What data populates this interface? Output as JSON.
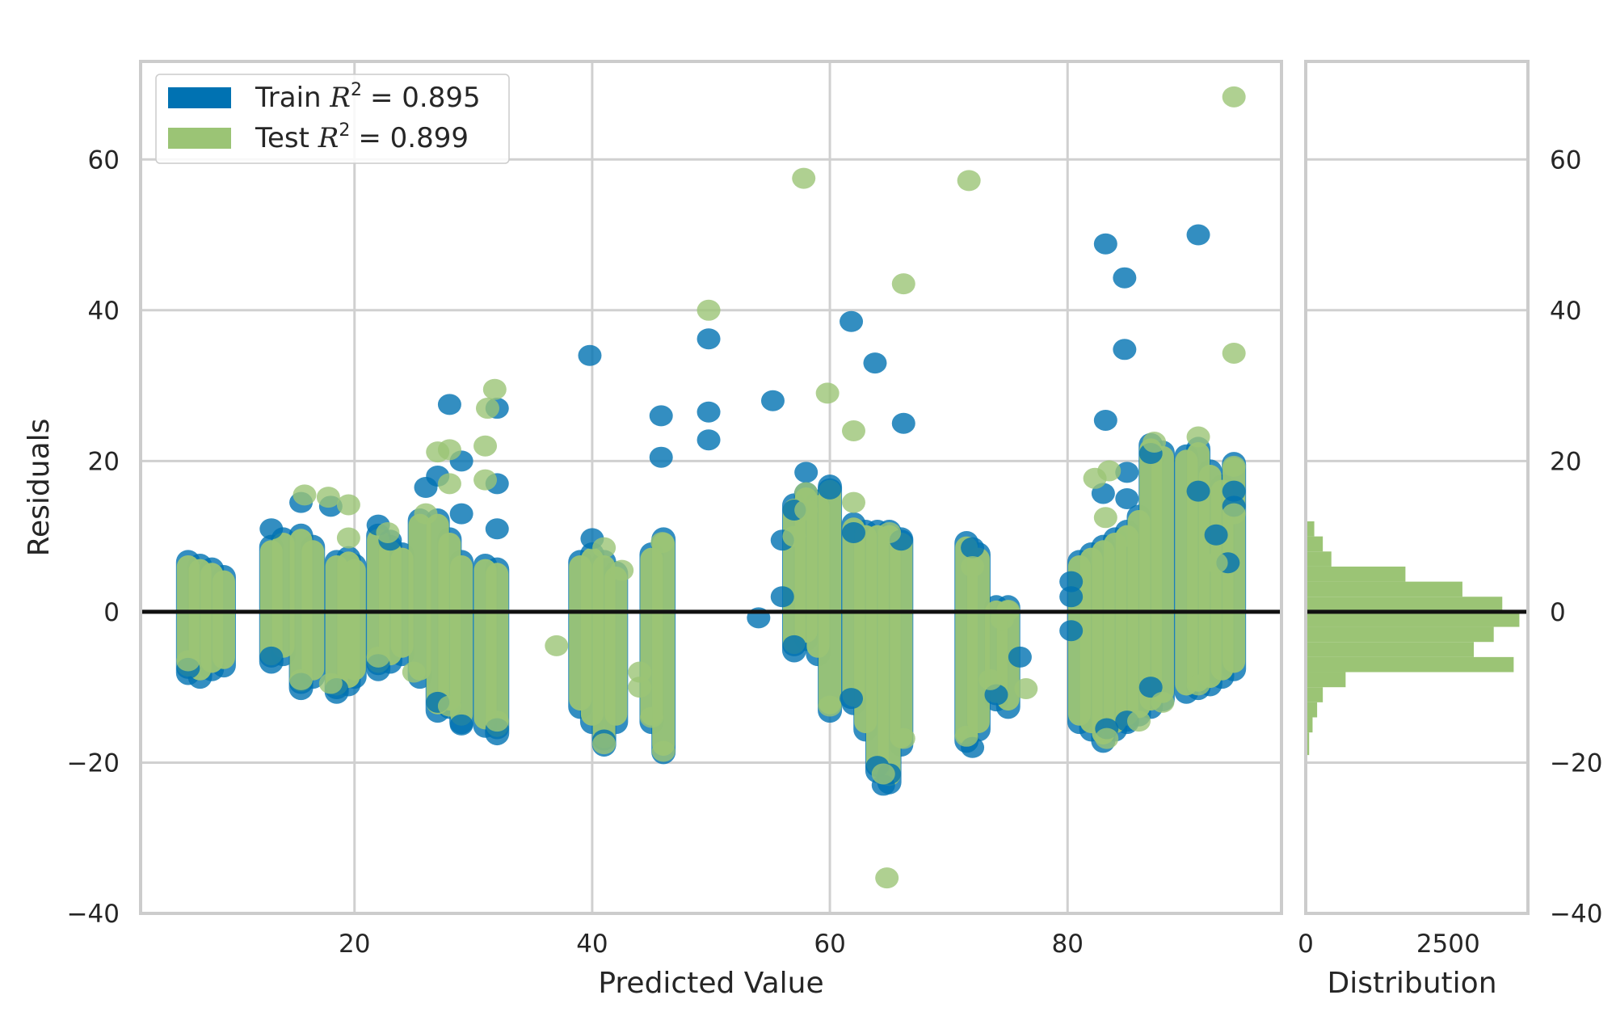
{
  "chart_data": {
    "type": "scatter",
    "title": "",
    "xlabel": "Predicted Value",
    "ylabel": "Residuals",
    "xlim": [
      2,
      98
    ],
    "ylim": [
      -40,
      73
    ],
    "xticks": [
      "20",
      "40",
      "60",
      "80"
    ],
    "yticks": [
      "60",
      "40",
      "20",
      "0",
      "−20",
      "−40"
    ],
    "grid": true,
    "legend_position": "upper-left",
    "reference_line_y": 0,
    "colors": {
      "train": "#0072b2",
      "test": "#9bc475",
      "zero_line": "#111111",
      "grid": "#d0d0d0"
    },
    "legend": [
      {
        "label_prefix": "Train ",
        "r2_symbol": "R",
        "r2_superscript": "2",
        "r2_value": "= 0.895",
        "color": "#0072b2"
      },
      {
        "label_prefix": "Test ",
        "r2_symbol": "R",
        "r2_superscript": "2",
        "r2_value": "= 0.899",
        "color": "#9bc475"
      }
    ],
    "series": [
      {
        "name": "Train",
        "color": "#0072b2",
        "points": [
          [
            39.8,
            34
          ],
          [
            45.8,
            26
          ],
          [
            45.8,
            20.5
          ],
          [
            49.8,
            36.2
          ],
          [
            49.8,
            26.5
          ],
          [
            49.8,
            22.8
          ],
          [
            55.2,
            28
          ],
          [
            61.8,
            38.5
          ],
          [
            63.8,
            33
          ],
          [
            66.2,
            25
          ],
          [
            83.2,
            48.8
          ],
          [
            84.8,
            44.3
          ],
          [
            84.8,
            34.8
          ],
          [
            83.2,
            25.4
          ],
          [
            91,
            50
          ],
          [
            28,
            27.5
          ],
          [
            32,
            27
          ],
          [
            32,
            17
          ],
          [
            32,
            11
          ],
          [
            29,
            20
          ],
          [
            29,
            13
          ],
          [
            26,
            16.5
          ],
          [
            27,
            18
          ],
          [
            13,
            11
          ],
          [
            15.5,
            14.5
          ],
          [
            18,
            14
          ],
          [
            22,
            11.5
          ],
          [
            23,
            9.5
          ],
          [
            40,
            9.7
          ],
          [
            58,
            18.5
          ],
          [
            60,
            16.3
          ],
          [
            56,
            9.5
          ],
          [
            57,
            13.5
          ],
          [
            62,
            10.5
          ],
          [
            66,
            9.5
          ],
          [
            72,
            8.5
          ],
          [
            85,
            18.5
          ],
          [
            85,
            15
          ],
          [
            83,
            15.7
          ],
          [
            87,
            21
          ],
          [
            91,
            16
          ],
          [
            92.5,
            10.2
          ],
          [
            94,
            16
          ],
          [
            94,
            14
          ],
          [
            93.5,
            6.5
          ],
          [
            80.3,
            4
          ],
          [
            80.3,
            2
          ],
          [
            80.3,
            -2.5
          ],
          [
            54,
            -0.8
          ],
          [
            56,
            2
          ],
          [
            57,
            -4.5
          ],
          [
            64.5,
            -23
          ],
          [
            65,
            -21.5
          ],
          [
            64,
            -20.5
          ],
          [
            72,
            -18
          ],
          [
            76,
            -6
          ],
          [
            74,
            -11
          ],
          [
            41,
            -17
          ],
          [
            29,
            -15
          ],
          [
            32,
            -15.5
          ],
          [
            18.5,
            -10.2
          ],
          [
            15.5,
            -9.5
          ],
          [
            13,
            -6
          ],
          [
            6,
            -7.5
          ],
          [
            22,
            -7
          ],
          [
            27,
            -12
          ],
          [
            61.8,
            -11.5
          ],
          [
            83.3,
            -15.5
          ],
          [
            85,
            -14.5
          ],
          [
            87,
            -10
          ]
        ]
      },
      {
        "name": "Test",
        "color": "#9bc475",
        "points": [
          [
            94,
            68.3
          ],
          [
            57.8,
            57.5
          ],
          [
            71.7,
            57.2
          ],
          [
            49.8,
            40
          ],
          [
            66.2,
            43.5
          ],
          [
            59.8,
            29
          ],
          [
            62,
            24
          ],
          [
            62,
            14.5
          ],
          [
            94,
            34.3
          ],
          [
            31.8,
            29.5
          ],
          [
            31.2,
            27
          ],
          [
            27,
            21.2
          ],
          [
            31,
            22
          ],
          [
            28,
            21.5
          ],
          [
            15.8,
            15.5
          ],
          [
            17.8,
            15.2
          ],
          [
            19.5,
            14.2
          ],
          [
            22.8,
            10.5
          ],
          [
            26,
            13
          ],
          [
            28,
            17
          ],
          [
            31,
            17.5
          ],
          [
            19.5,
            9.8
          ],
          [
            45.9,
            9.2
          ],
          [
            41,
            8.5
          ],
          [
            42.5,
            5.5
          ],
          [
            72,
            6
          ],
          [
            87.3,
            22.5
          ],
          [
            91,
            23.2
          ],
          [
            94,
            19.3
          ],
          [
            94,
            13
          ],
          [
            82.3,
            17.7
          ],
          [
            83.5,
            18.7
          ],
          [
            83.2,
            12.5
          ],
          [
            85,
            10
          ],
          [
            92.5,
            6.5
          ],
          [
            58,
            15.8
          ],
          [
            58,
            13.5
          ],
          [
            57,
            10
          ],
          [
            65,
            10.5
          ],
          [
            75,
            0.2
          ],
          [
            74.5,
            -1
          ],
          [
            76.5,
            -10.2
          ],
          [
            73.5,
            -9
          ],
          [
            44,
            -8
          ],
          [
            44,
            -10
          ],
          [
            45,
            -14
          ],
          [
            46,
            -18.5
          ],
          [
            41,
            -17.5
          ],
          [
            37,
            -4.5
          ],
          [
            32,
            -14.5
          ],
          [
            28,
            -12.5
          ],
          [
            18,
            -9.5
          ],
          [
            15.5,
            -9
          ],
          [
            71.5,
            -16.5
          ],
          [
            66.2,
            -16.8
          ],
          [
            64.8,
            -35.3
          ],
          [
            64.5,
            -21.5
          ],
          [
            60,
            -12.5
          ],
          [
            83.3,
            -16.8
          ],
          [
            86,
            -14.5
          ],
          [
            88,
            -12
          ],
          [
            91,
            -9.7
          ],
          [
            25,
            -8
          ],
          [
            6,
            -6.5
          ],
          [
            22,
            -6
          ]
        ]
      }
    ],
    "vertical_bands": [
      {
        "x": 6.0,
        "ymin": -7.5,
        "ymax": 6.0
      },
      {
        "x": 7.0,
        "ymin": -8.0,
        "ymax": 5.5
      },
      {
        "x": 8.0,
        "ymin": -7.0,
        "ymax": 5.0
      },
      {
        "x": 9.0,
        "ymin": -6.5,
        "ymax": 4.0
      },
      {
        "x": 13.0,
        "ymin": -6.0,
        "ymax": 8.0
      },
      {
        "x": 14.0,
        "ymin": -5.0,
        "ymax": 9.0
      },
      {
        "x": 15.5,
        "ymin": -9.5,
        "ymax": 9.5
      },
      {
        "x": 16.5,
        "ymin": -8.0,
        "ymax": 8.0
      },
      {
        "x": 18.5,
        "ymin": -10.0,
        "ymax": 6.0
      },
      {
        "x": 19.5,
        "ymin": -9.0,
        "ymax": 6.5
      },
      {
        "x": 20.0,
        "ymin": -8.0,
        "ymax": 5.5
      },
      {
        "x": 22.0,
        "ymin": -7.0,
        "ymax": 9.5
      },
      {
        "x": 23.0,
        "ymin": -6.0,
        "ymax": 8.0
      },
      {
        "x": 24.0,
        "ymin": -5.0,
        "ymax": 7.0
      },
      {
        "x": 25.5,
        "ymin": -8.0,
        "ymax": 11.5
      },
      {
        "x": 27.0,
        "ymin": -12.5,
        "ymax": 11.5
      },
      {
        "x": 28.0,
        "ymin": -12.0,
        "ymax": 9.0
      },
      {
        "x": 29.0,
        "ymin": -14.0,
        "ymax": 6.0
      },
      {
        "x": 31.0,
        "ymin": -14.5,
        "ymax": 5.5
      },
      {
        "x": 32.0,
        "ymin": -15.5,
        "ymax": 5.0
      },
      {
        "x": 39.0,
        "ymin": -12.0,
        "ymax": 6.0
      },
      {
        "x": 40.0,
        "ymin": -14.0,
        "ymax": 7.0
      },
      {
        "x": 41.0,
        "ymin": -17.0,
        "ymax": 6.0
      },
      {
        "x": 42.0,
        "ymin": -14.0,
        "ymax": 4.5
      },
      {
        "x": 45.0,
        "ymin": -14.0,
        "ymax": 7.0
      },
      {
        "x": 46.0,
        "ymin": -18.0,
        "ymax": 9.0
      },
      {
        "x": 57.0,
        "ymin": -4.5,
        "ymax": 13.5
      },
      {
        "x": 58.0,
        "ymin": -3.0,
        "ymax": 15.0
      },
      {
        "x": 59.0,
        "ymin": -5.0,
        "ymax": 14.0
      },
      {
        "x": 60.0,
        "ymin": -12.5,
        "ymax": 16.0
      },
      {
        "x": 62.0,
        "ymin": -11.5,
        "ymax": 11.0
      },
      {
        "x": 63.0,
        "ymin": -15.0,
        "ymax": 10.0
      },
      {
        "x": 64.0,
        "ymin": -20.5,
        "ymax": 10.0
      },
      {
        "x": 65.0,
        "ymin": -22.0,
        "ymax": 10.0
      },
      {
        "x": 66.0,
        "ymin": -17.0,
        "ymax": 9.0
      },
      {
        "x": 71.5,
        "ymin": -16.5,
        "ymax": 8.5
      },
      {
        "x": 72.5,
        "ymin": -15.0,
        "ymax": 7.0
      },
      {
        "x": 74.0,
        "ymin": -11.0,
        "ymax": 0.0
      },
      {
        "x": 75.0,
        "ymin": -12.0,
        "ymax": 0.0
      },
      {
        "x": 81.0,
        "ymin": -14.0,
        "ymax": 6.0
      },
      {
        "x": 82.0,
        "ymin": -15.0,
        "ymax": 7.0
      },
      {
        "x": 83.0,
        "ymin": -16.5,
        "ymax": 8.0
      },
      {
        "x": 84.0,
        "ymin": -15.0,
        "ymax": 9.0
      },
      {
        "x": 85.0,
        "ymin": -14.0,
        "ymax": 10.0
      },
      {
        "x": 86.0,
        "ymin": -13.0,
        "ymax": 12.0
      },
      {
        "x": 87.0,
        "ymin": -12.0,
        "ymax": 21.5
      },
      {
        "x": 88.0,
        "ymin": -11.0,
        "ymax": 20.5
      },
      {
        "x": 90.0,
        "ymin": -10.0,
        "ymax": 20.0
      },
      {
        "x": 91.0,
        "ymin": -9.5,
        "ymax": 21.0
      },
      {
        "x": 92.0,
        "ymin": -9.0,
        "ymax": 18.0
      },
      {
        "x": 93.0,
        "ymin": -8.0,
        "ymax": 16.0
      },
      {
        "x": 94.0,
        "ymin": -7.0,
        "ymax": 19.0
      }
    ],
    "distribution": {
      "xlabel": "Distribution",
      "xlim": [
        0,
        3900
      ],
      "xticks": [
        "0",
        "2500"
      ],
      "bins": [
        {
          "y0": -19,
          "y1": -16,
          "count": 60
        },
        {
          "y0": -16,
          "y1": -14,
          "count": 120
        },
        {
          "y0": -14,
          "y1": -12,
          "count": 200
        },
        {
          "y0": -12,
          "y1": -10,
          "count": 300
        },
        {
          "y0": -10,
          "y1": -8,
          "count": 700
        },
        {
          "y0": -8,
          "y1": -6,
          "count": 3650
        },
        {
          "y0": -6,
          "y1": -4,
          "count": 2950
        },
        {
          "y0": -4,
          "y1": -2,
          "count": 3300
        },
        {
          "y0": -2,
          "y1": 0,
          "count": 3750
        },
        {
          "y0": 0,
          "y1": 2,
          "count": 3450
        },
        {
          "y0": 2,
          "y1": 4,
          "count": 2750
        },
        {
          "y0": 4,
          "y1": 6,
          "count": 1750
        },
        {
          "y0": 6,
          "y1": 8,
          "count": 450
        },
        {
          "y0": 8,
          "y1": 10,
          "count": 300
        },
        {
          "y0": 10,
          "y1": 12,
          "count": 150
        }
      ]
    }
  }
}
